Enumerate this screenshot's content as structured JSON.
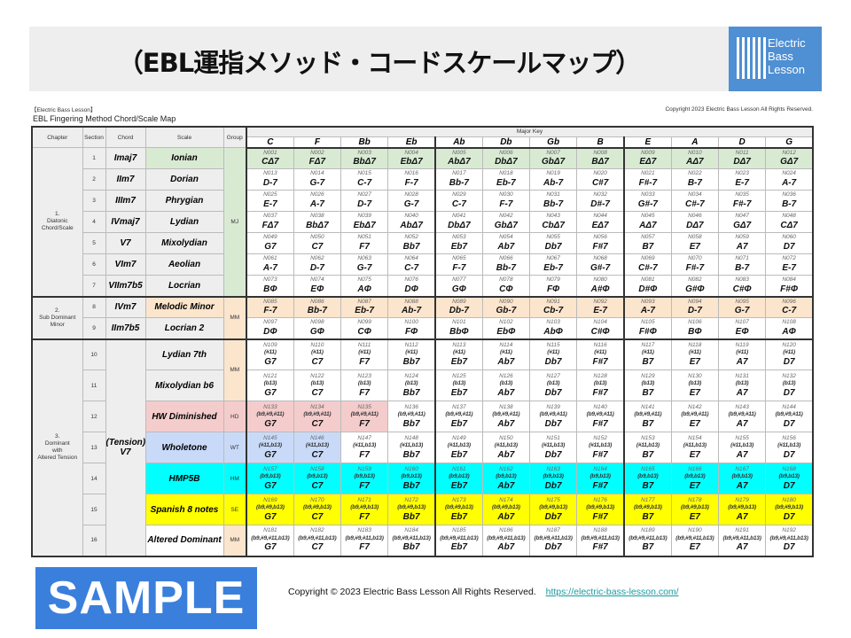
{
  "header": {
    "title": "（EBL運指メソッド・コードスケールマップ）",
    "logo_text": "Electric\nBass\nLesson",
    "logo_brand": "Electric Bass Lesson",
    "accent": "#4f8fd3"
  },
  "sheet": {
    "brand": "【Electric Bass Lesson】",
    "copyright": "Copyright 2023 Electric Bass Lesson All Rights Reserved.",
    "title": "EBL Fingering Method Chord/Scale Map",
    "col_headers": {
      "chapter": "Chapter",
      "section": "Section",
      "chord": "Chord",
      "scale": "Scale",
      "group": "Group",
      "major_key": "Major Key"
    },
    "keys": [
      "C",
      "F",
      "Bb",
      "Eb",
      "Ab",
      "Db",
      "Gb",
      "B",
      "E",
      "A",
      "D",
      "G"
    ],
    "chapters": [
      {
        "label": "1.\nDiatonic\nChord/Scale",
        "rows": 7
      },
      {
        "label": "2.\nSub Dominant\nMinor",
        "rows": 2
      },
      {
        "label": "3.\nDominant\nwith\nAltered Tension",
        "rows": 7
      }
    ],
    "groups": [
      {
        "label": "MJ",
        "rows": 7,
        "color": "#d9ead3"
      },
      {
        "label": "MM",
        "rows": 2,
        "color": "#fce5cd"
      },
      {
        "label": "MM",
        "rows": 2,
        "color": "#fce5cd"
      },
      {
        "label": "HD",
        "rows": 1,
        "color": "#f4cccc"
      },
      {
        "label": "WT",
        "rows": 1,
        "color": "#c9daf8"
      },
      {
        "label": "HM",
        "rows": 1,
        "color": "#00ffff"
      },
      {
        "label": "SE",
        "rows": 1,
        "color": "#ffff00"
      },
      {
        "label": "MM",
        "rows": 1,
        "color": "#fce5cd"
      }
    ],
    "merged_chord": "(Tension)\nV7",
    "sections": [
      {
        "no": "1",
        "chord": "Imaj7",
        "scale": "Ionian",
        "color": "#d9ead3",
        "fill_cells": 12,
        "ids": [
          "N001",
          "N002",
          "N003",
          "N004",
          "N005",
          "N006",
          "N007",
          "N008",
          "N009",
          "N010",
          "N011",
          "N012"
        ],
        "chords": [
          "CΔ7",
          "FΔ7",
          "BbΔ7",
          "EbΔ7",
          "AbΔ7",
          "DbΔ7",
          "GbΔ7",
          "BΔ7",
          "EΔ7",
          "AΔ7",
          "DΔ7",
          "GΔ7"
        ]
      },
      {
        "no": "2",
        "chord": "IIm7",
        "scale": "Dorian",
        "color": "#eeeeee",
        "fill_cells": 0,
        "ids": [
          "N013",
          "N014",
          "N015",
          "N016",
          "N017",
          "N018",
          "N019",
          "N020",
          "N021",
          "N022",
          "N023",
          "N024"
        ],
        "chords": [
          "D-7",
          "G-7",
          "C-7",
          "F-7",
          "Bb-7",
          "Eb-7",
          "Ab-7",
          "C#7",
          "F#-7",
          "B-7",
          "E-7",
          "A-7"
        ]
      },
      {
        "no": "3",
        "chord": "IIIm7",
        "scale": "Phrygian",
        "color": "#eeeeee",
        "fill_cells": 0,
        "ids": [
          "N025",
          "N026",
          "N027",
          "N028",
          "N029",
          "N030",
          "N031",
          "N032",
          "N033",
          "N034",
          "N035",
          "N036"
        ],
        "chords": [
          "E-7",
          "A-7",
          "D-7",
          "G-7",
          "C-7",
          "F-7",
          "Bb-7",
          "D#-7",
          "G#-7",
          "C#-7",
          "F#-7",
          "B-7"
        ]
      },
      {
        "no": "4",
        "chord": "IVmaj7",
        "scale": "Lydian",
        "color": "#eeeeee",
        "fill_cells": 0,
        "ids": [
          "N037",
          "N038",
          "N039",
          "N040",
          "N041",
          "N042",
          "N043",
          "N044",
          "N045",
          "N046",
          "N047",
          "N048"
        ],
        "chords": [
          "FΔ7",
          "BbΔ7",
          "EbΔ7",
          "AbΔ7",
          "DbΔ7",
          "GbΔ7",
          "CbΔ7",
          "EΔ7",
          "AΔ7",
          "DΔ7",
          "GΔ7",
          "CΔ7"
        ]
      },
      {
        "no": "5",
        "chord": "V7",
        "scale": "Mixolydian",
        "color": "#eeeeee",
        "fill_cells": 0,
        "ids": [
          "N049",
          "N050",
          "N051",
          "N052",
          "N053",
          "N054",
          "N055",
          "N056",
          "N057",
          "N058",
          "N059",
          "N060"
        ],
        "chords": [
          "G7",
          "C7",
          "F7",
          "Bb7",
          "Eb7",
          "Ab7",
          "Db7",
          "F#7",
          "B7",
          "E7",
          "A7",
          "D7"
        ]
      },
      {
        "no": "6",
        "chord": "VIm7",
        "scale": "Aeolian",
        "color": "#eeeeee",
        "fill_cells": 0,
        "ids": [
          "N061",
          "N062",
          "N063",
          "N064",
          "N065",
          "N066",
          "N067",
          "N068",
          "N069",
          "N070",
          "N071",
          "N072"
        ],
        "chords": [
          "A-7",
          "D-7",
          "G-7",
          "C-7",
          "F-7",
          "Bb-7",
          "Eb-7",
          "G#-7",
          "C#-7",
          "F#-7",
          "B-7",
          "E-7"
        ]
      },
      {
        "no": "7",
        "chord": "VIIm7b5",
        "scale": "Locrian",
        "color": "#eeeeee",
        "fill_cells": 0,
        "ids": [
          "N073",
          "N074",
          "N075",
          "N076",
          "N077",
          "N078",
          "N079",
          "N080",
          "N081",
          "N082",
          "N083",
          "N084"
        ],
        "chords": [
          "BΦ",
          "EΦ",
          "AΦ",
          "DΦ",
          "GΦ",
          "CΦ",
          "FΦ",
          "A#Φ",
          "D#Φ",
          "G#Φ",
          "C#Φ",
          "F#Φ"
        ]
      },
      {
        "no": "8",
        "chord": "IVm7",
        "scale": "Melodic Minor",
        "color": "#fce5cd",
        "fill_cells": 12,
        "ids": [
          "N085",
          "N086",
          "N087",
          "N088",
          "N089",
          "N090",
          "N091",
          "N092",
          "N093",
          "N094",
          "N095",
          "N096"
        ],
        "chords": [
          "F-7",
          "Bb-7",
          "Eb-7",
          "Ab-7",
          "Db-7",
          "Gb-7",
          "Cb-7",
          "E-7",
          "A-7",
          "D-7",
          "G-7",
          "C-7"
        ]
      },
      {
        "no": "9",
        "chord": "IIm7b5",
        "scale": "Locrian 2",
        "color": "#eeeeee",
        "fill_cells": 0,
        "ids": [
          "N097",
          "N098",
          "N099",
          "N100",
          "N101",
          "N102",
          "N103",
          "N104",
          "N105",
          "N106",
          "N107",
          "N108"
        ],
        "chords": [
          "DΦ",
          "GΦ",
          "CΦ",
          "FΦ",
          "BbΦ",
          "EbΦ",
          "AbΦ",
          "C#Φ",
          "F#Φ",
          "BΦ",
          "EΦ",
          "AΦ"
        ]
      },
      {
        "no": "10",
        "scale": "Lydian 7th",
        "color": "#eeeeee",
        "fill_cells": 0,
        "tension": "(#11)",
        "ids": [
          "N109",
          "N110",
          "N111",
          "N112",
          "N113",
          "N114",
          "N115",
          "N116",
          "N117",
          "N118",
          "N119",
          "N120"
        ],
        "chords": [
          "G7",
          "C7",
          "F7",
          "Bb7",
          "Eb7",
          "Ab7",
          "Db7",
          "F#7",
          "B7",
          "E7",
          "A7",
          "D7"
        ]
      },
      {
        "no": "11",
        "scale": "Mixolydian b6",
        "color": "#eeeeee",
        "fill_cells": 0,
        "tension": "(b13)",
        "ids": [
          "N121",
          "N122",
          "N123",
          "N124",
          "N125",
          "N126",
          "N127",
          "N128",
          "N129",
          "N130",
          "N131",
          "N132"
        ],
        "chords": [
          "G7",
          "C7",
          "F7",
          "Bb7",
          "Eb7",
          "Ab7",
          "Db7",
          "F#7",
          "B7",
          "E7",
          "A7",
          "D7"
        ]
      },
      {
        "no": "12",
        "scale": "HW Diminished",
        "color": "#f4cccc",
        "fill_cells": 3,
        "tension": "(b9,#9,#11)",
        "ids": [
          "N133",
          "N134",
          "N135",
          "N136",
          "N137",
          "N138",
          "N139",
          "N140",
          "N141",
          "N142",
          "N143",
          "N144"
        ],
        "chords": [
          "G7",
          "C7",
          "F7",
          "Bb7",
          "Eb7",
          "Ab7",
          "Db7",
          "F#7",
          "B7",
          "E7",
          "A7",
          "D7"
        ]
      },
      {
        "no": "13",
        "scale": "Wholetone",
        "color": "#c9daf8",
        "fill_cells": 2,
        "tension": "(#11,b13)",
        "ids": [
          "N145",
          "N146",
          "N147",
          "N148",
          "N149",
          "N150",
          "N151",
          "N152",
          "N153",
          "N154",
          "N155",
          "N156"
        ],
        "chords": [
          "G7",
          "C7",
          "F7",
          "Bb7",
          "Eb7",
          "Ab7",
          "Db7",
          "F#7",
          "B7",
          "E7",
          "A7",
          "D7"
        ]
      },
      {
        "no": "14",
        "scale": "HMP5B",
        "color": "#00ffff",
        "fill_cells": 12,
        "tension": "(b9,b13)",
        "ids": [
          "N157",
          "N158",
          "N159",
          "N160",
          "N161",
          "N162",
          "N163",
          "N164",
          "N165",
          "N166",
          "N167",
          "N168"
        ],
        "chords": [
          "G7",
          "C7",
          "F7",
          "Bb7",
          "Eb7",
          "Ab7",
          "Db7",
          "F#7",
          "B7",
          "E7",
          "A7",
          "D7"
        ]
      },
      {
        "no": "15",
        "scale": "Spanish 8 notes",
        "color": "#ffff00",
        "fill_cells": 12,
        "tension": "(b9,#9,b13)",
        "ids": [
          "N169",
          "N170",
          "N171",
          "N172",
          "N173",
          "N174",
          "N175",
          "N176",
          "N177",
          "N178",
          "N179",
          "N180"
        ],
        "chords": [
          "G7",
          "C7",
          "F7",
          "Bb7",
          "Eb7",
          "Ab7",
          "Db7",
          "F#7",
          "B7",
          "E7",
          "A7",
          "D7"
        ]
      },
      {
        "no": "16",
        "scale": "Altered Dominant",
        "color": "#ffffff",
        "fill_cells": 0,
        "tension": "(b9,#9,#11,b13)",
        "ids": [
          "N181",
          "N182",
          "N183",
          "N184",
          "N185",
          "N186",
          "N187",
          "N188",
          "N189",
          "N190",
          "N191",
          "N192"
        ],
        "chords": [
          "G7",
          "C7",
          "F7",
          "Bb7",
          "Eb7",
          "Ab7",
          "Db7",
          "F#7",
          "B7",
          "E7",
          "A7",
          "D7"
        ]
      }
    ]
  },
  "watermark": {
    "label": "SAMPLE",
    "color": "#3a7fdc"
  },
  "footer": {
    "copyright": "Copyright © 2023 Electric Bass Lesson All Rights Reserved.",
    "link": "https://electric-bass-lesson.com/"
  }
}
